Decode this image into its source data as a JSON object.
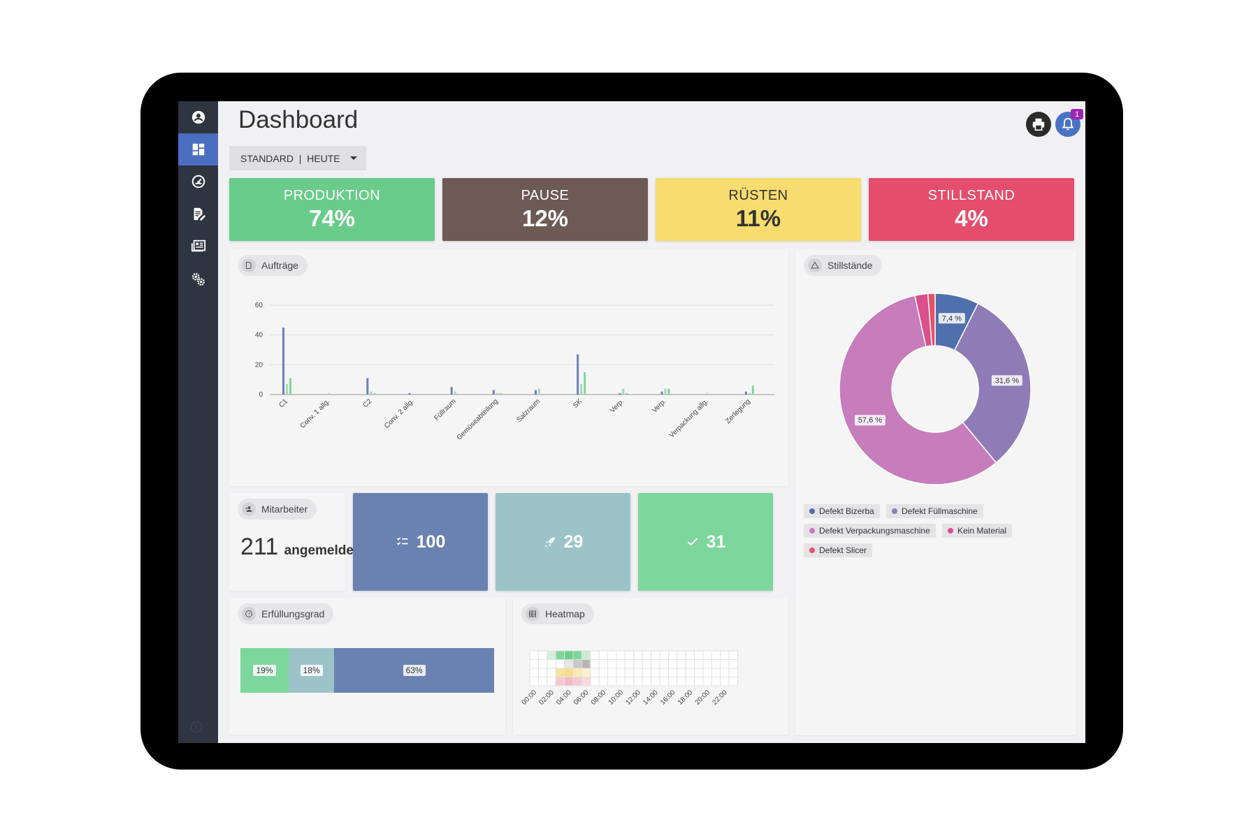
{
  "page": {
    "title": "Dashboard",
    "filter_label": "STANDARD  |  HEUTE",
    "notification_count": "1"
  },
  "sidebar": {
    "items": [
      {
        "icon": "account-circle-icon"
      },
      {
        "icon": "dashboard-icon",
        "active": true
      },
      {
        "icon": "gauge-icon"
      },
      {
        "icon": "document-edit-icon"
      },
      {
        "icon": "news-list-icon"
      },
      {
        "icon": "settings-gears-icon"
      }
    ],
    "footer_icon": "info-icon"
  },
  "kpis": [
    {
      "label": "PRODUKTION",
      "value": "74%",
      "color": "#69cc8a",
      "text_color": "#ffffff"
    },
    {
      "label": "PAUSE",
      "value": "12%",
      "color": "#6d5a55",
      "text_color": "#ffffff"
    },
    {
      "label": "RÜSTEN",
      "value": "11%",
      "color": "#f7dc6f",
      "text_color": "#333333"
    },
    {
      "label": "STILLSTAND",
      "value": "4%",
      "color": "#e44d6b",
      "text_color": "#ffffff"
    }
  ],
  "auftraege": {
    "title": "Aufträge",
    "chart_data": {
      "type": "bar",
      "categories": [
        "C1",
        "Conv. 1 allg.",
        "C2",
        "Conv. 2 allg.",
        "Füllraum",
        "Gemüseabteilung",
        "Salzraum",
        "SK",
        "Verp.",
        "Verp.",
        "Verpackung allg.",
        "Zerlegung"
      ],
      "series": [
        {
          "values": [
            45,
            0,
            11,
            1,
            5,
            3,
            3,
            27,
            1,
            2,
            0,
            2
          ],
          "color": "#6b80b8"
        },
        {
          "values": [
            7,
            1,
            2,
            0,
            2,
            1,
            4,
            7,
            4,
            4,
            1,
            1
          ],
          "color": "#a6d8b4"
        },
        {
          "values": [
            11,
            0,
            1,
            0,
            0,
            1,
            0,
            15,
            1,
            4,
            0,
            6
          ],
          "color": "#7fd69a"
        }
      ],
      "yticks": [
        0,
        20,
        40,
        60
      ],
      "ylim": [
        0,
        60
      ],
      "grid": true
    }
  },
  "stillstaende": {
    "title": "Stillstände",
    "chart_data": {
      "type": "pie",
      "labels": [
        "Defekt Bizerba",
        "Defekt Füllmaschine",
        "Defekt Verpackungsmaschine",
        "Kein Material",
        "Defekt Slicer"
      ],
      "values": [
        7.4,
        31.6,
        57.6,
        2.2,
        1.2
      ],
      "colors": [
        "#4f6fad",
        "#8f7cb7",
        "#c77cbb",
        "#d9508a",
        "#e8516a"
      ],
      "value_labels": [
        "7,4 %",
        "31,6 %",
        "57,6 %",
        "",
        ""
      ],
      "legend_position": "bottom"
    }
  },
  "mitarbeiter": {
    "title": "Mitarbeiter",
    "count": "211",
    "status": "angemeldet"
  },
  "tiles": [
    {
      "value": "100",
      "icon": "checklist-icon",
      "color": "#6a82b1"
    },
    {
      "value": "29",
      "icon": "rocket-icon",
      "color": "#9cc4c8"
    },
    {
      "value": "31",
      "icon": "check-icon",
      "color": "#7dd69c"
    }
  ],
  "erfuellungsgrad": {
    "title": "Erfüllungsgrad",
    "segments": [
      {
        "label": "19%",
        "share": 0.19,
        "color": "#7dd69c"
      },
      {
        "label": "18%",
        "share": 0.18,
        "color": "#9cc4c8"
      },
      {
        "label": "63%",
        "share": 0.63,
        "color": "#6a82b1"
      }
    ]
  },
  "heatmap": {
    "title": "Heatmap",
    "chart_data": {
      "type": "heatmap",
      "x_labels": [
        "00:00",
        "02:00",
        "04:00",
        "06:00",
        "08:00",
        "10:00",
        "12:00",
        "14:00",
        "16:00",
        "18:00",
        "20:00",
        "22:00"
      ],
      "columns": 24,
      "rows": 4,
      "cells": [
        {
          "row": 0,
          "col": 2,
          "color": "#d6efdd"
        },
        {
          "row": 0,
          "col": 3,
          "color": "#7fd69a"
        },
        {
          "row": 0,
          "col": 4,
          "color": "#6ecf8e"
        },
        {
          "row": 0,
          "col": 5,
          "color": "#7fd69a"
        },
        {
          "row": 0,
          "col": 6,
          "color": "#c9ecd3"
        },
        {
          "row": 1,
          "col": 5,
          "color": "#c8c8c8"
        },
        {
          "row": 1,
          "col": 6,
          "color": "#b5b5b5"
        },
        {
          "row": 1,
          "col": 4,
          "color": "#e6e6e6"
        },
        {
          "row": 2,
          "col": 3,
          "color": "#f7e29a"
        },
        {
          "row": 2,
          "col": 4,
          "color": "#f5de8a"
        },
        {
          "row": 2,
          "col": 5,
          "color": "#f9eab5"
        },
        {
          "row": 2,
          "col": 6,
          "color": "#fbf1cc"
        },
        {
          "row": 3,
          "col": 3,
          "color": "#f6c9d2"
        },
        {
          "row": 3,
          "col": 4,
          "color": "#f3b9c6"
        },
        {
          "row": 3,
          "col": 5,
          "color": "#f6c9d2"
        },
        {
          "row": 3,
          "col": 6,
          "color": "#f9d8df"
        }
      ]
    }
  }
}
